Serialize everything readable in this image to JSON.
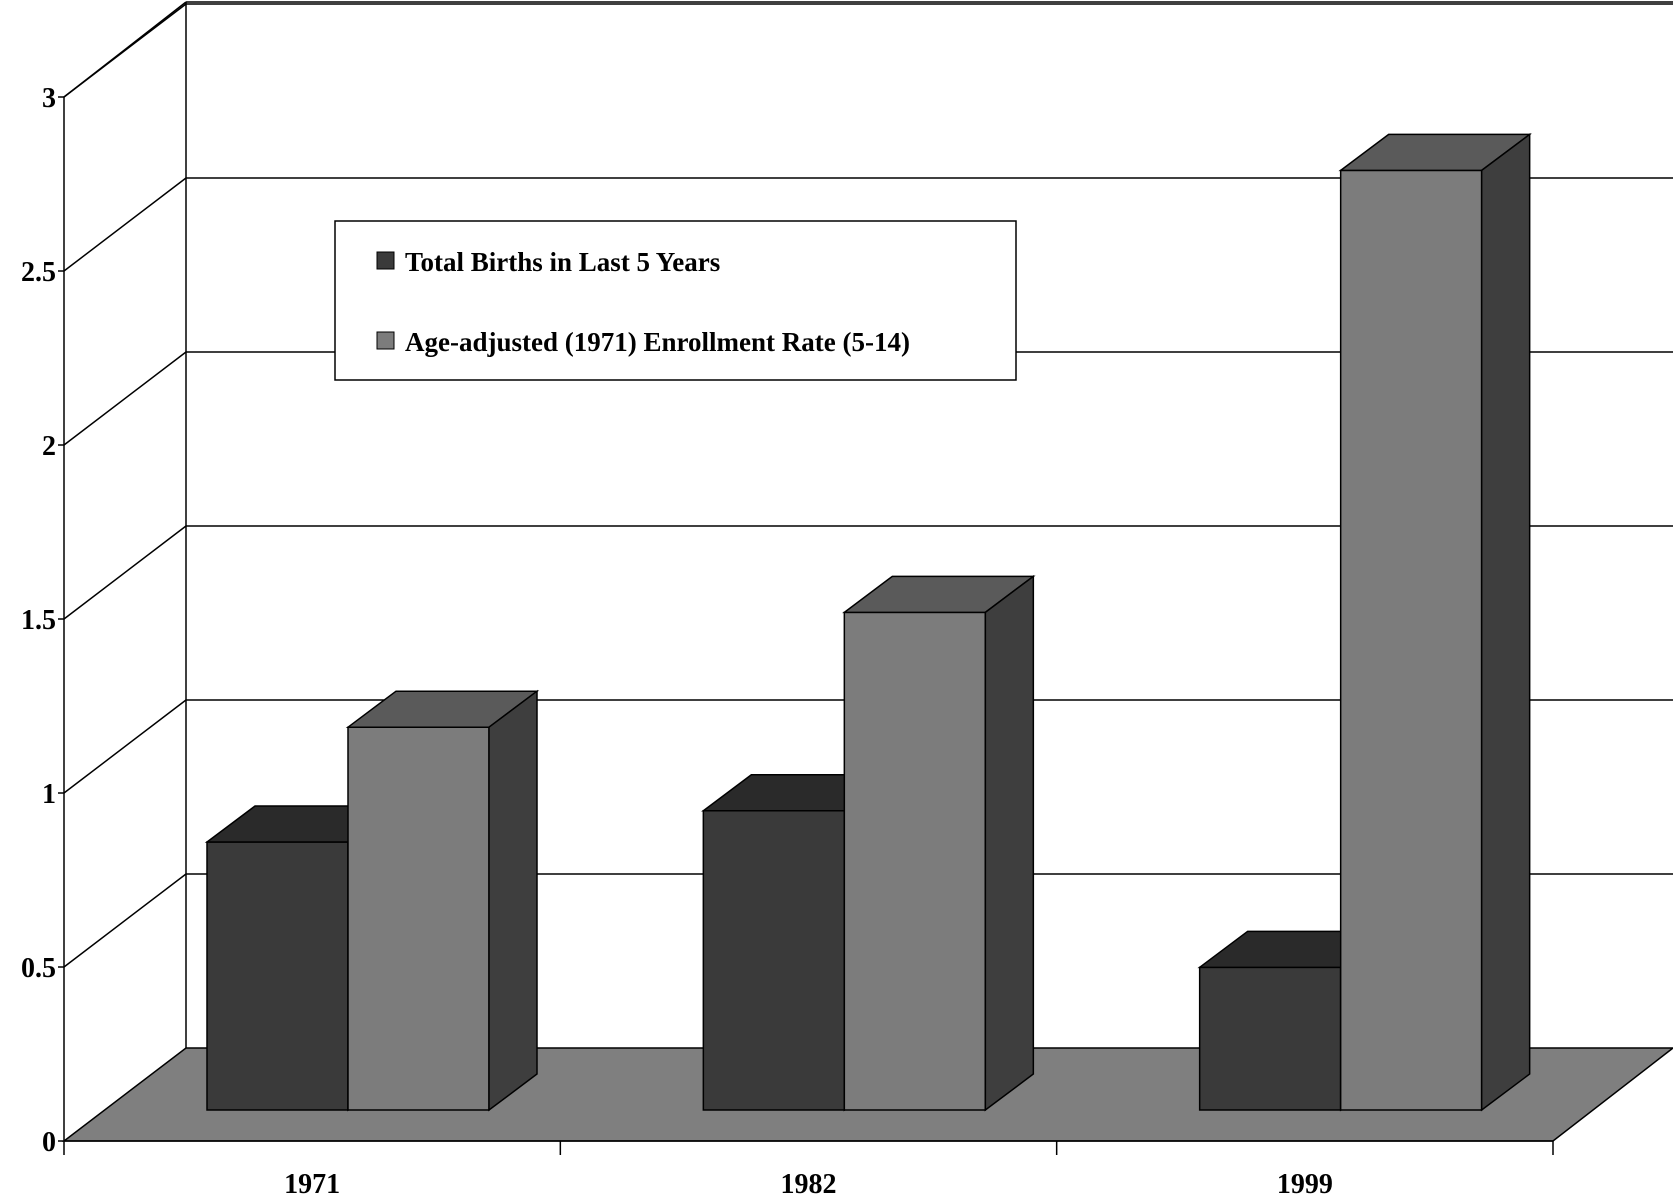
{
  "chart_data": {
    "type": "bar",
    "title": "",
    "xlabel": "",
    "ylabel": "",
    "categories": [
      "1971",
      "1982",
      "1999"
    ],
    "series": [
      {
        "name": "Total Births in Last 5 Years",
        "values": [
          0.77,
          0.86,
          0.41
        ],
        "color": "#3a3a3a"
      },
      {
        "name": "Age-adjusted (1971) Enrollment Rate (5-14)",
        "values": [
          1.1,
          1.43,
          2.7
        ],
        "color": "#7c7c7c"
      }
    ],
    "ylim": [
      0,
      3
    ],
    "yticks": [
      "0",
      "0.5",
      "1",
      "1.5",
      "2",
      "2.5",
      "3"
    ],
    "grid": true,
    "three_d": true,
    "legend_position": "top-left inside"
  }
}
